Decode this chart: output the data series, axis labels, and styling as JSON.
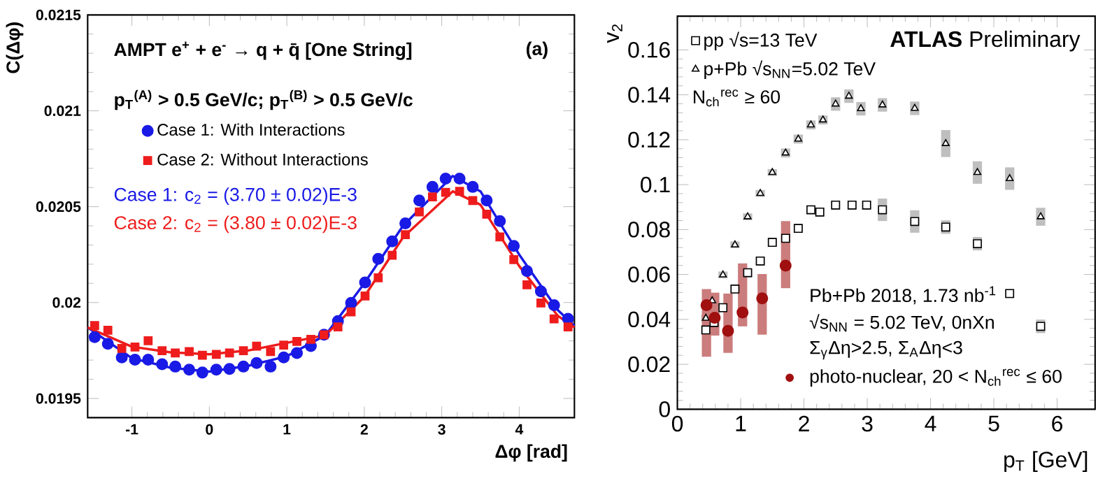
{
  "chart_data": [
    {
      "type": "scatter",
      "xlabel": "Δφ [rad]",
      "ylabel": "C(Δφ)",
      "annotations": [
        "AMPT e$^{+}$ + e$^{-}$ → q + q̄  [One String]",
        "p$_{T}$$^{(A)}$ > 0.5 GeV/c; p$_{T}$$^{(B)}$ > 0.5 GeV/c",
        "(a)"
      ],
      "xlim": [
        -1.5708,
        4.7124
      ],
      "ylim": [
        0.0194,
        0.0215
      ],
      "xticks": [
        -1,
        0,
        1,
        2,
        3,
        4
      ],
      "yticks": [
        0.0195,
        0.02,
        0.0205,
        0.021,
        0.0215
      ],
      "legend": "top left",
      "grid": false,
      "series": [
        {
          "name": "Case 1: With Interactions",
          "marker": "circle",
          "color": "#1a1ae6",
          "x": [
            -1.48,
            -1.31,
            -1.13,
            -0.96,
            -0.79,
            -0.61,
            -0.44,
            -0.26,
            -0.09,
            0.09,
            0.26,
            0.44,
            0.61,
            0.79,
            0.96,
            1.13,
            1.31,
            1.48,
            1.66,
            1.83,
            2.01,
            2.18,
            2.36,
            2.53,
            2.71,
            2.88,
            3.05,
            3.23,
            3.4,
            3.58,
            3.75,
            3.93,
            4.1,
            4.28,
            4.45,
            4.63
          ],
          "values": [
            0.01982,
            0.019785,
            0.019714,
            0.019702,
            0.019702,
            0.019678,
            0.019666,
            0.01965,
            0.019635,
            0.01965,
            0.019654,
            0.019666,
            0.019685,
            0.019666,
            0.019714,
            0.019737,
            0.019773,
            0.019832,
            0.019903,
            0.019998,
            0.020105,
            0.020228,
            0.020319,
            0.020413,
            0.020532,
            0.020603,
            0.020646,
            0.020646,
            0.020603,
            0.020532,
            0.020425,
            0.020295,
            0.020164,
            0.020058,
            0.019986,
            0.019915
          ]
        },
        {
          "name": "Case 2: Without Interactions",
          "marker": "square",
          "color": "#ee1c1c",
          "x": [
            -1.48,
            -1.31,
            -1.13,
            -0.96,
            -0.79,
            -0.61,
            -0.44,
            -0.26,
            -0.09,
            0.09,
            0.26,
            0.44,
            0.61,
            0.79,
            0.96,
            1.13,
            1.31,
            1.48,
            1.66,
            1.83,
            2.01,
            2.18,
            2.36,
            2.53,
            2.71,
            2.88,
            3.05,
            3.23,
            3.4,
            3.58,
            3.75,
            3.93,
            4.1,
            4.28,
            4.45,
            4.63
          ],
          "values": [
            0.01988,
            0.019856,
            0.019761,
            0.019768,
            0.019801,
            0.019749,
            0.019737,
            0.019744,
            0.019725,
            0.01973,
            0.019737,
            0.019749,
            0.019773,
            0.019744,
            0.019778,
            0.019797,
            0.019808,
            0.019832,
            0.019873,
            0.019951,
            0.020034,
            0.020129,
            0.020247,
            0.020354,
            0.020473,
            0.020551,
            0.020575,
            0.02058,
            0.020532,
            0.020461,
            0.020342,
            0.020224,
            0.020093,
            0.019998,
            0.019915,
            0.019873
          ]
        },
        {
          "name": "Case 1: c$_{2}$ = (3.70 ± 0.02)E-3",
          "type": "line",
          "color": "#1a1ae6",
          "x": [
            -1.5708,
            -1.0,
            -0.5,
            0.0,
            0.5,
            1.0,
            1.5,
            2.0,
            2.5,
            3.1416,
            3.5,
            4.0,
            4.5,
            4.7124
          ],
          "values": [
            0.01987,
            0.01971,
            0.01966,
            0.01964,
            0.01967,
            0.01972,
            0.01983,
            0.0201,
            0.0204,
            0.02066,
            0.02058,
            0.02025,
            0.01996,
            0.01988
          ]
        },
        {
          "name": "Case 2: c$_{2}$ = (3.80 ± 0.02)E-3",
          "type": "line",
          "color": "#ee1c1c",
          "x": [
            -1.5708,
            -1.0,
            -0.5,
            0.0,
            0.5,
            1.0,
            1.5,
            2.0,
            2.5,
            3.1416,
            3.5,
            4.0,
            4.5,
            4.7124
          ],
          "values": [
            0.01987,
            0.01977,
            0.01974,
            0.01973,
            0.01975,
            0.01979,
            0.01983,
            0.02003,
            0.02034,
            0.02058,
            0.02051,
            0.02019,
            0.01993,
            0.01987
          ]
        }
      ]
    },
    {
      "type": "scatter",
      "xlabel": "p$_{T}$ [GeV]",
      "ylabel": "v$_{2}$",
      "annotations": [
        "**ATLAS** Preliminary",
        "N$_{ch}$$^{rec}$ ≥ 60",
        "Pb+Pb 2018, 1.73 nb$^{-1}$",
        "√s$_{NN}$ = 5.02 TeV, 0nXn",
        "Σ$_{γ}$Δη>2.5, Σ$_{A}$Δη<3"
      ],
      "xlim": [
        0,
        6.6
      ],
      "ylim": [
        0,
        0.175
      ],
      "xticks": [
        0,
        1,
        2,
        3,
        4,
        5,
        6
      ],
      "yticks": [
        0,
        0.02,
        0.04,
        0.06,
        0.08,
        0.1,
        0.12,
        0.14,
        0.16
      ],
      "legend": "top left",
      "grid": false,
      "series": [
        {
          "name": "pp  √s=13 TeV",
          "marker": "square",
          "color": "#000000",
          "x": [
            0.45,
            0.58,
            0.72,
            0.91,
            1.11,
            1.31,
            1.5,
            1.71,
            1.91,
            2.11,
            2.25,
            2.5,
            2.76,
            2.99,
            3.24,
            3.75,
            4.24,
            4.74,
            5.25,
            5.74
          ],
          "values": [
            0.0353,
            0.0386,
            0.0452,
            0.0535,
            0.0608,
            0.066,
            0.0743,
            0.0761,
            0.0805,
            0.0888,
            0.0878,
            0.0909,
            0.0909,
            0.0909,
            0.0888,
            0.0836,
            0.0811,
            0.0737,
            0.0515,
            0.0369
          ],
          "errors": [
            0.002,
            0.002,
            0.002,
            0.002,
            0.002,
            0.002,
            0.002,
            0.002,
            0.002,
            0.002,
            0.002,
            0.002,
            0.002,
            0.002,
            0.005,
            0.005,
            0.003,
            0.003,
            0.002,
            0.003
          ]
        },
        {
          "name": "p+Pb √s$_{NN}$=5.02 TeV",
          "marker": "triangle",
          "color": "#000000",
          "x": [
            0.45,
            0.55,
            0.72,
            0.91,
            1.11,
            1.31,
            1.5,
            1.71,
            1.91,
            2.11,
            2.3,
            2.5,
            2.71,
            2.9,
            3.24,
            3.75,
            4.24,
            4.74,
            5.25,
            5.74
          ],
          "values": [
            0.0405,
            0.0483,
            0.0598,
            0.0732,
            0.0857,
            0.0961,
            0.1054,
            0.1141,
            0.1203,
            0.1266,
            0.1288,
            0.1359,
            0.1394,
            0.1338,
            0.1355,
            0.134,
            0.1183,
            0.1054,
            0.1027,
            0.0857
          ],
          "errors": [
            0.0015,
            0.0015,
            0.0015,
            0.0015,
            0.0015,
            0.0015,
            0.0015,
            0.002,
            0.002,
            0.002,
            0.002,
            0.003,
            0.003,
            0.003,
            0.003,
            0.003,
            0.006,
            0.005,
            0.005,
            0.004
          ]
        },
        {
          "name": "photo-nuclear, 20 < N$_{ch}$$^{rec}$ ≤ 60",
          "marker": "circle",
          "color": "#a01010",
          "x": [
            0.46,
            0.59,
            0.8,
            1.03,
            1.34,
            1.71
          ],
          "values": [
            0.0463,
            0.0407,
            0.0349,
            0.0431,
            0.0494,
            0.0639
          ],
          "errors": [
            [
              0.0234,
              0.0535
            ],
            [
              0.0328,
              0.0519
            ],
            [
              0.0251,
              0.0515
            ],
            [
              0.0369,
              0.0649
            ],
            [
              0.0332,
              0.0602
            ],
            [
              0.0539,
              0.0838
            ]
          ]
        }
      ]
    }
  ]
}
